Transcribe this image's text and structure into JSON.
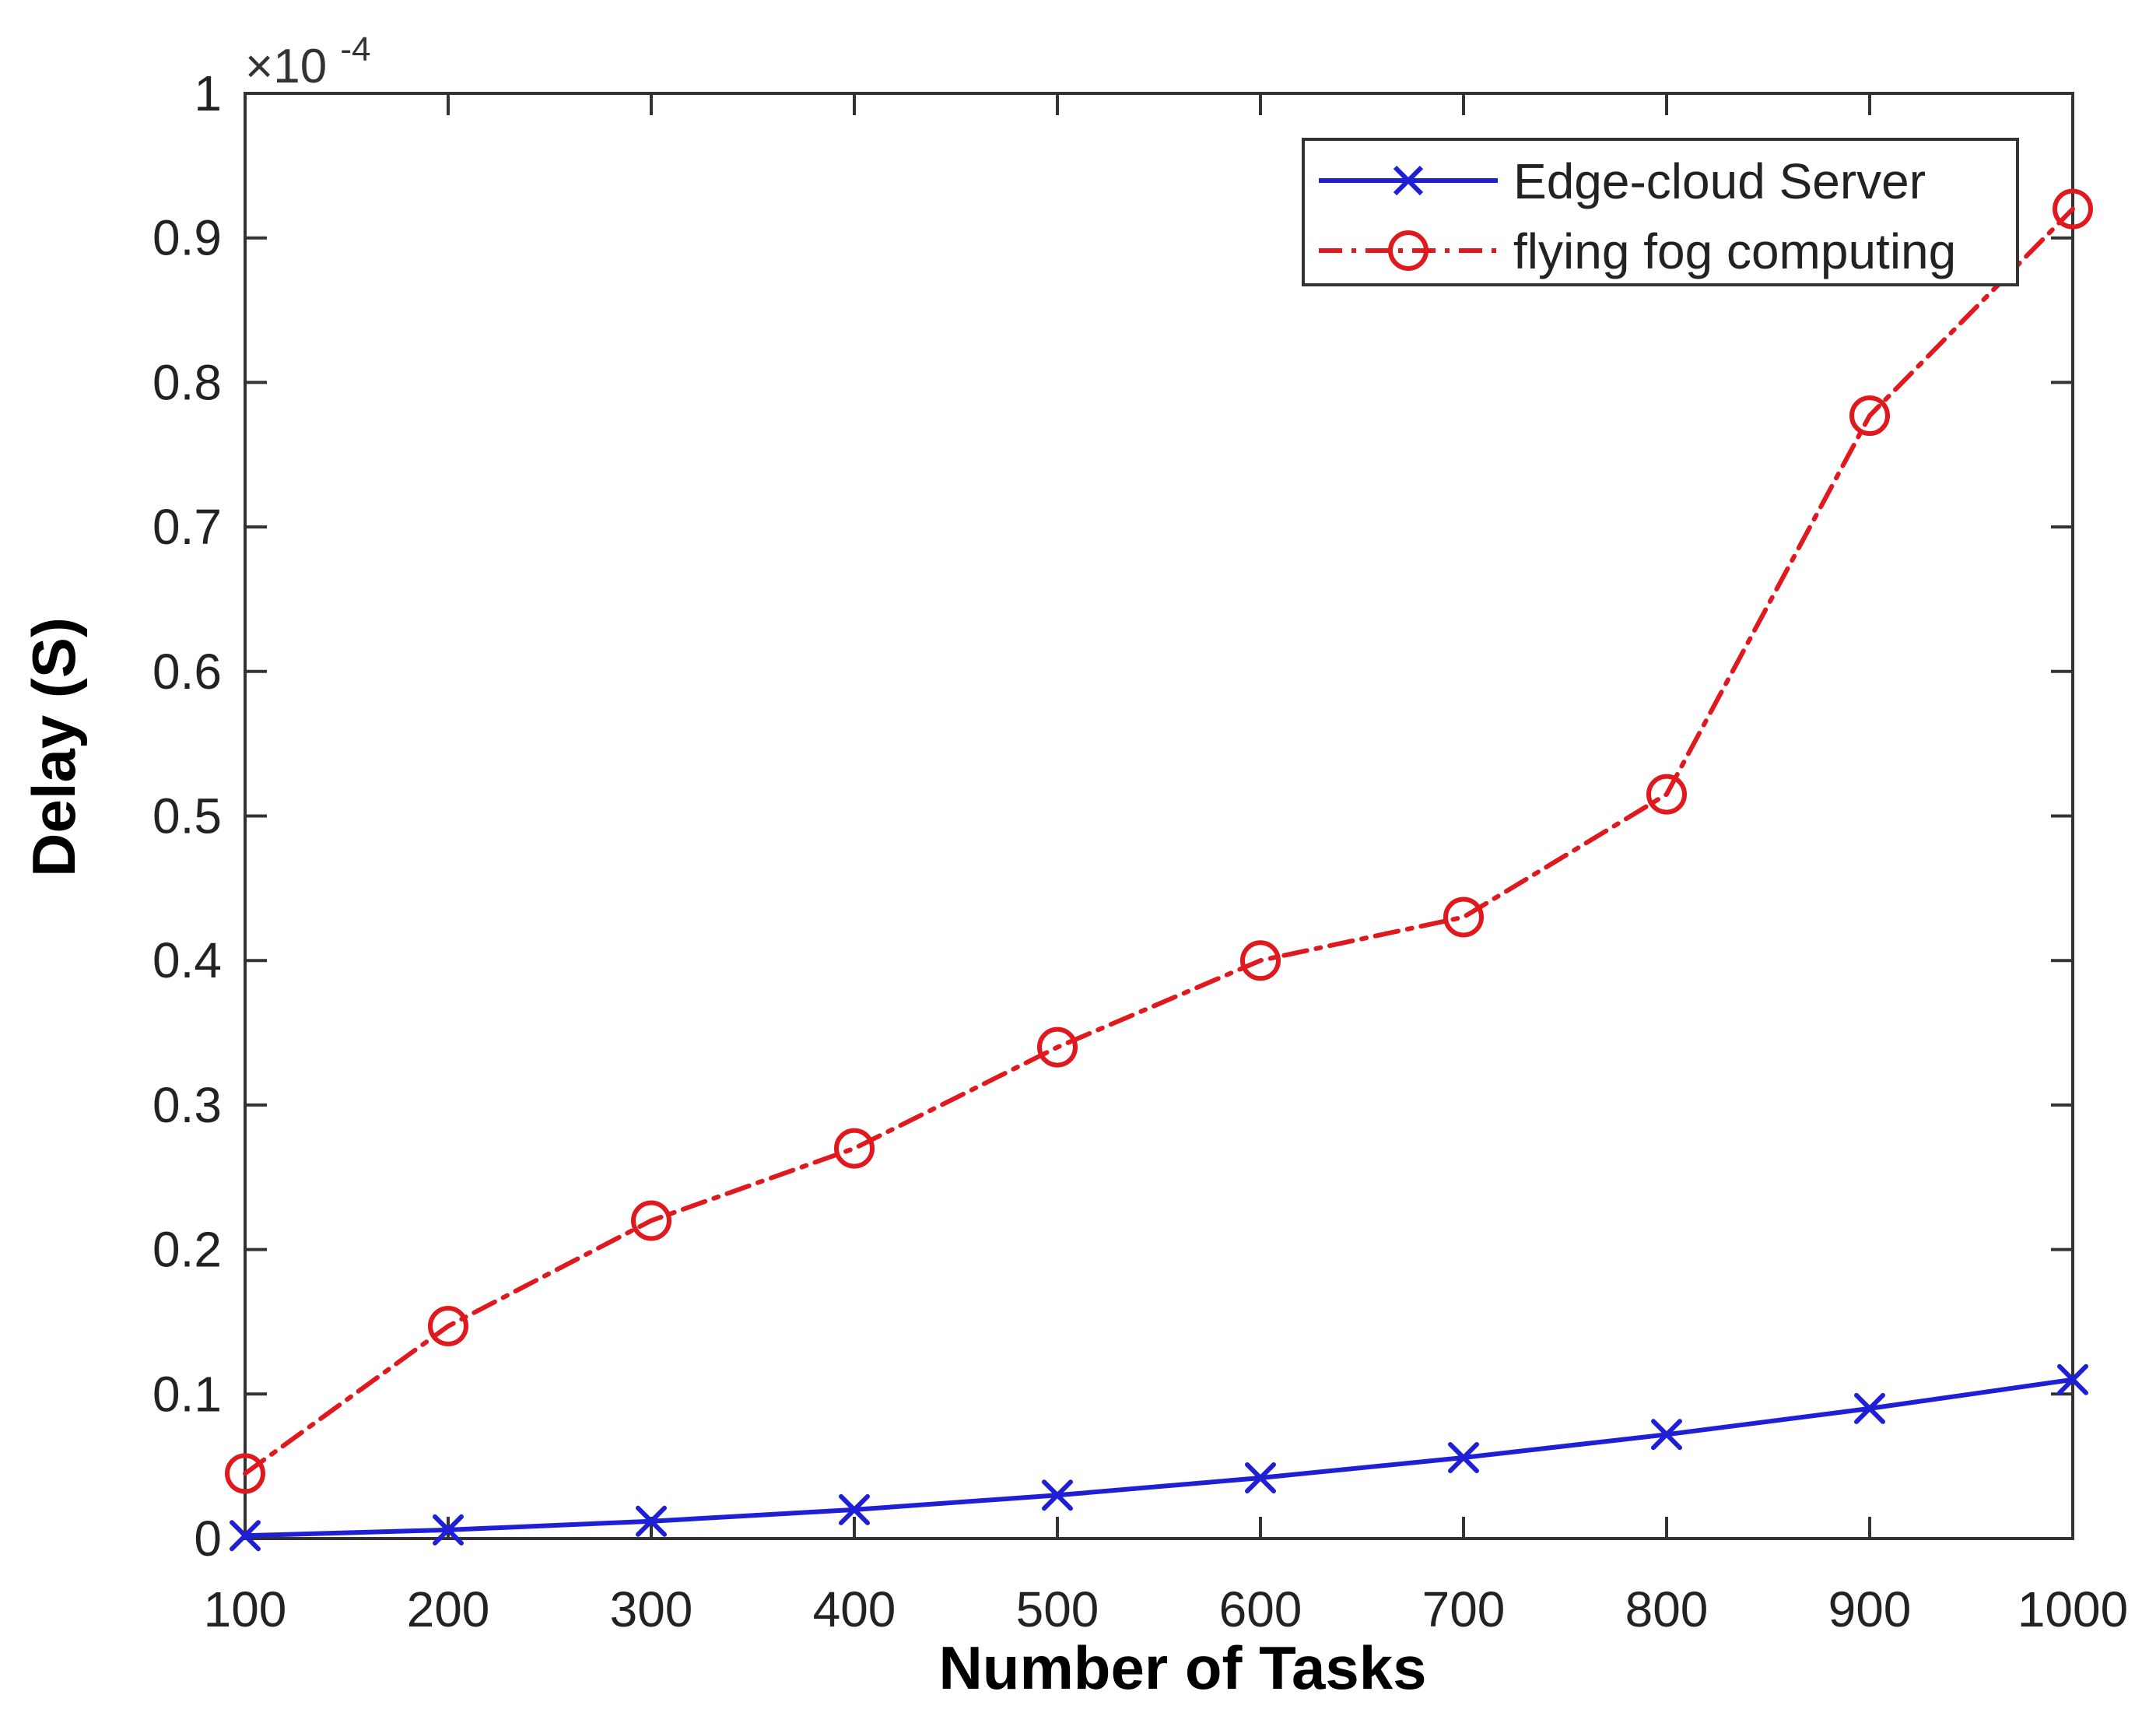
{
  "chart_data": {
    "type": "line",
    "title": "",
    "xlabel": "Number of Tasks",
    "ylabel": "Delay (S)",
    "y_exponent_label": {
      "base": "×10",
      "power": "-4"
    },
    "x": [
      100,
      200,
      300,
      400,
      500,
      600,
      700,
      800,
      900,
      1000
    ],
    "xlim": [
      100,
      1000
    ],
    "ylim": [
      0,
      1
    ],
    "x_ticks": [
      "100",
      "200",
      "300",
      "400",
      "500",
      "600",
      "700",
      "800",
      "900",
      "1000"
    ],
    "y_ticks": [
      "0",
      "0.1",
      "0.2",
      "0.3",
      "0.4",
      "0.5",
      "0.6",
      "0.7",
      "0.8",
      "0.9",
      "1"
    ],
    "grid": false,
    "legend_position": "top-right",
    "series": [
      {
        "name": "Edge-cloud Server",
        "color": "#1f1fd6",
        "line_style": "solid",
        "marker": "x",
        "values": [
          0.002,
          0.006,
          0.012,
          0.02,
          0.03,
          0.042,
          0.056,
          0.072,
          0.09,
          0.11
        ]
      },
      {
        "name": "flying fog computing",
        "color": "#e0191f",
        "line_style": "dash-dot",
        "marker": "circle",
        "values": [
          0.045,
          0.147,
          0.22,
          0.27,
          0.34,
          0.4,
          0.43,
          0.515,
          0.777,
          0.92
        ]
      }
    ]
  }
}
